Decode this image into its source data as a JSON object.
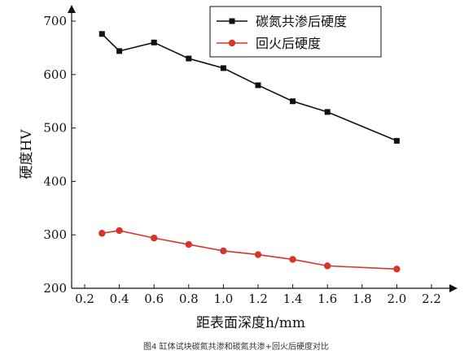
{
  "chart_data": {
    "type": "line",
    "xlabel": "距表面深度h/mm",
    "ylabel": "硬度HV",
    "xlim": [
      0.1,
      2.3
    ],
    "ylim": [
      200,
      700
    ],
    "xticks": [
      "0.2",
      "0.4",
      "0.6",
      "0.8",
      "1.0",
      "1.2",
      "1.4",
      "1.6",
      "1.8",
      "2.0",
      "2.2"
    ],
    "yticks": [
      "200",
      "300",
      "400",
      "500",
      "600",
      "700"
    ],
    "legend_position": "top-right",
    "grid": false,
    "caption": "图4 缸体试块碳氮共渗和碳氮共渗+回火后硬度对比",
    "series": [
      {
        "name": "碳氮共渗后硬度",
        "color": "#111111",
        "marker": "square",
        "x": [
          0.3,
          0.4,
          0.6,
          0.8,
          1.0,
          1.2,
          1.4,
          1.6,
          2.0
        ],
        "y": [
          676,
          644,
          660,
          630,
          612,
          580,
          550,
          530,
          476
        ]
      },
      {
        "name": "回火后硬度",
        "color": "#d9342b",
        "marker": "circle",
        "x": [
          0.3,
          0.4,
          0.6,
          0.8,
          1.0,
          1.2,
          1.4,
          1.6,
          2.0
        ],
        "y": [
          303,
          308,
          294,
          282,
          270,
          263,
          254,
          242,
          236
        ]
      }
    ]
  }
}
